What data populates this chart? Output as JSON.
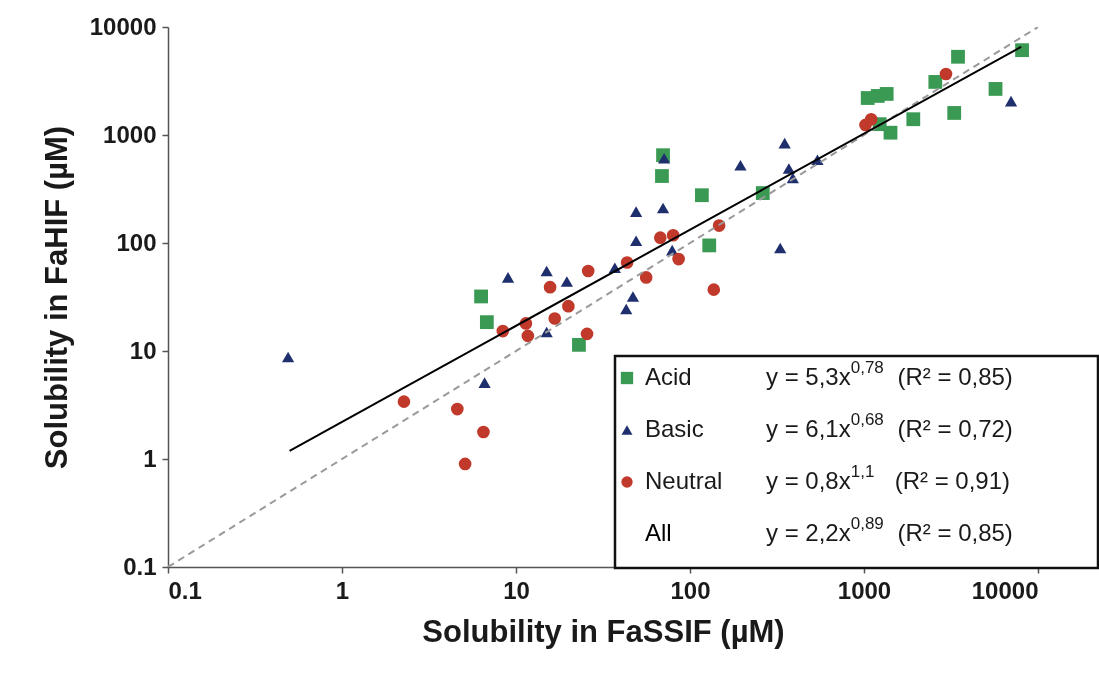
{
  "chart_data": {
    "type": "scatter",
    "xlabel": "Solubility in FaSSIF (µM)",
    "ylabel": "Solubility in FaHIF (µM)",
    "log": "xy",
    "xlim": [
      0.1,
      10000
    ],
    "ylim": [
      0.1,
      10000
    ],
    "xticks": [
      0.1,
      1,
      10,
      100,
      1000,
      10000
    ],
    "yticks": [
      0.1,
      1,
      10,
      100,
      1000,
      10000
    ],
    "grid": false,
    "legend": "bottom right",
    "annotations": [
      "y = 5,3x$^{0,78}$ (R² = 0,85)",
      "y = 6,1x$^{0,68}$ (R² = 0,72)",
      "y = 0,8x$^{1,1}$  (R² = 0,91)",
      "y = 2,2x$^{0,89}$ (R² = 0,85)"
    ],
    "series": [
      {
        "name": "Acid",
        "type": "scatter",
        "marker": "square",
        "color": "#3a9a54",
        "x": [
          6.3,
          6.8,
          23,
          70,
          69,
          117,
          129,
          262,
          1050,
          1200,
          1350,
          1230,
          1420,
          1920,
          2570,
          3470,
          3300,
          5700,
          8100
        ],
        "values": [
          32,
          18.5,
          11.4,
          650,
          417,
          277,
          95,
          290,
          2200,
          2300,
          2400,
          1260,
          1050,
          1400,
          3100,
          5300,
          1600,
          2670,
          6100
        ]
      },
      {
        "name": "Basic",
        "type": "scatter",
        "marker": "triangle",
        "color": "#1f2f6e",
        "x": [
          0.49,
          6.6,
          9,
          15,
          19.6,
          15,
          37,
          43,
          47,
          49,
          49,
          70,
          71,
          79,
          195,
          350,
          330,
          370,
          390,
          540,
          7000
        ],
        "values": [
          8.8,
          5.1,
          48,
          55,
          44,
          15,
          59,
          24.5,
          32,
          195,
          105,
          211,
          610,
          86,
          525,
          840,
          90,
          490,
          400,
          590,
          2060
        ]
      },
      {
        "name": "Neutral",
        "type": "scatter",
        "marker": "circle",
        "color": "#c0392b",
        "x": [
          2.27,
          4.6,
          6.5,
          5.1,
          8.4,
          11.4,
          11.7,
          15.7,
          16.7,
          20,
          25.6,
          26,
          43.5,
          56,
          67.5,
          80,
          86,
          137,
          147,
          1020,
          1100,
          2960
        ],
        "values": [
          3.4,
          2.9,
          1.78,
          0.9,
          15.3,
          18,
          13.8,
          39,
          20,
          26,
          14.4,
          55,
          66,
          48,
          112,
          118,
          71,
          37,
          145,
          1240,
          1400,
          3670
        ]
      },
      {
        "type": "line",
        "color": "#9a9a9a",
        "line_style": "dashed",
        "x": [
          0.1,
          10000
        ],
        "values": [
          0.1,
          10000
        ]
      },
      {
        "name": "All",
        "type": "line",
        "color": "#000000",
        "line_style": "solid",
        "x": [
          0.5,
          8000
        ],
        "values": [
          1.19,
          6550
        ]
      }
    ]
  }
}
